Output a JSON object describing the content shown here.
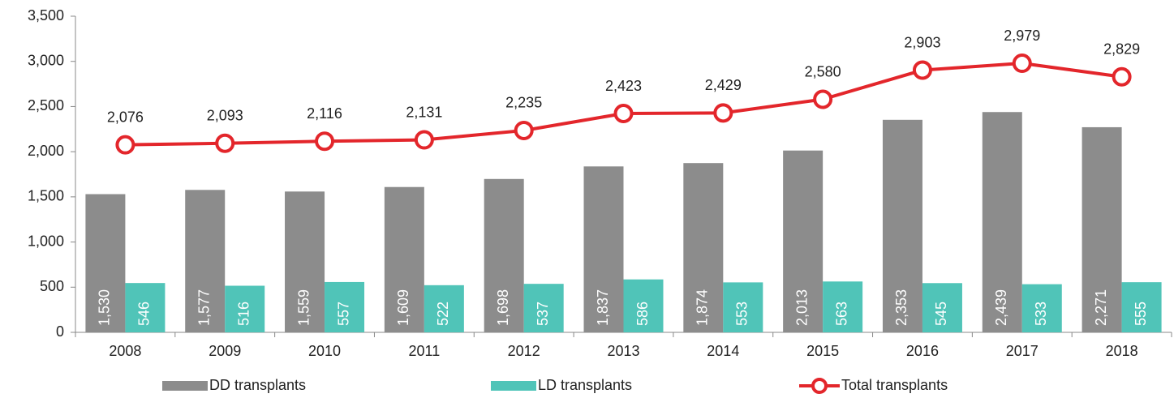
{
  "chart_data": {
    "type": "bar",
    "categories": [
      "2008",
      "2009",
      "2010",
      "2011",
      "2012",
      "2013",
      "2014",
      "2015",
      "2016",
      "2017",
      "2018"
    ],
    "series": [
      {
        "name": "DD transplants",
        "type": "bar",
        "color": "#8c8c8c",
        "values": [
          1530,
          1577,
          1559,
          1609,
          1698,
          1837,
          1874,
          2013,
          2353,
          2439,
          2271
        ],
        "value_labels": [
          "1,530",
          "1,577",
          "1,559",
          "1,609",
          "1,698",
          "1,837",
          "1,874",
          "2,013",
          "2,353",
          "2,439",
          "2,271"
        ]
      },
      {
        "name": "LD transplants",
        "type": "bar",
        "color": "#50c4b8",
        "values": [
          546,
          516,
          557,
          522,
          537,
          586,
          553,
          563,
          545,
          533,
          555
        ]
      },
      {
        "name": "Total transplants",
        "type": "line",
        "color": "#e3262b",
        "values": [
          2076,
          2093,
          2116,
          2131,
          2235,
          2423,
          2429,
          2580,
          2903,
          2979,
          2829
        ],
        "value_labels": [
          "2,076",
          "2,093",
          "2,116",
          "2,131",
          "2,235",
          "2,423",
          "2,429",
          "2,580",
          "2,903",
          "2,979",
          "2,829"
        ]
      }
    ],
    "ylim": [
      0,
      3500
    ],
    "yticks": [
      0,
      500,
      {
        "value": 1000,
        "label": "1,000"
      },
      {
        "value": 1500,
        "label": "1,500"
      },
      {
        "value": 2000,
        "label": "2,000"
      },
      {
        "value": 2500,
        "label": "2,500"
      },
      {
        "value": 3000,
        "label": "3,000"
      },
      {
        "value": 3500,
        "label": "3,500"
      }
    ],
    "legend": "bottom"
  }
}
